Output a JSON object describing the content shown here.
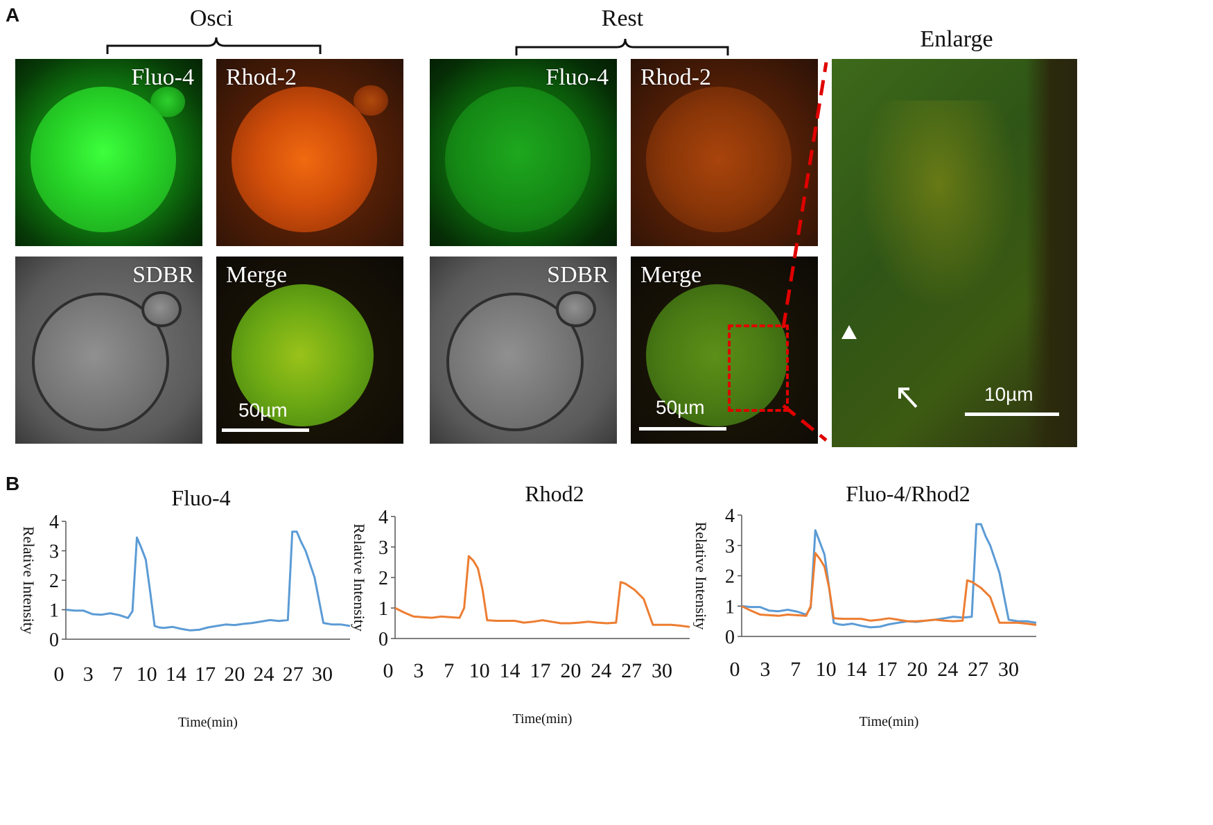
{
  "panel_a": {
    "letter": "A",
    "groups": [
      {
        "title": "Osci"
      },
      {
        "title": "Rest"
      }
    ],
    "tile_labels": {
      "fluo4": "Fluo-4",
      "rhod2": "Rhod-2",
      "sdbr": "SDBR",
      "merge": "Merge"
    },
    "scale_merge": "50µm",
    "enlarge_title": "Enlarge",
    "scale_enlarge": "10µm"
  },
  "panel_b": {
    "letter": "B",
    "ylabel": "Relative Intensity",
    "xlabel": "Time(min)"
  },
  "colors": {
    "blue": "#5b9bd5",
    "orange": "#ed7d31",
    "dashed_red": "#e00000"
  },
  "chart_data": [
    {
      "type": "line",
      "title": "Fluo-4",
      "xlabel": "Time(min)",
      "ylabel": "Relative Intensity",
      "x_ticks": [
        "0",
        "3",
        "7",
        "10",
        "14",
        "17",
        "20",
        "24",
        "27",
        "30"
      ],
      "ylim": [
        0,
        4
      ],
      "y_ticks": [
        0,
        1,
        2,
        3,
        4
      ],
      "xlim": [
        0,
        32
      ],
      "series": [
        {
          "color": "#5b9bd5",
          "x": [
            0,
            1,
            2,
            3,
            4,
            5,
            6,
            7,
            7.5,
            8,
            8.5,
            9,
            9.5,
            10,
            10.5,
            11,
            12,
            13,
            14,
            15,
            16,
            17,
            18,
            19,
            20,
            21,
            22,
            23,
            24,
            25,
            25.5,
            26,
            26.5,
            27,
            28,
            29,
            30,
            31,
            32
          ],
          "y": [
            1.0,
            0.97,
            0.97,
            0.85,
            0.83,
            0.88,
            0.82,
            0.72,
            0.95,
            3.45,
            3.1,
            2.7,
            1.6,
            0.45,
            0.4,
            0.38,
            0.42,
            0.35,
            0.3,
            0.32,
            0.4,
            0.45,
            0.5,
            0.48,
            0.52,
            0.55,
            0.6,
            0.65,
            0.62,
            0.65,
            3.65,
            3.65,
            3.3,
            3.0,
            2.1,
            0.55,
            0.5,
            0.5,
            0.45
          ]
        }
      ]
    },
    {
      "type": "line",
      "title": "Rhod2",
      "xlabel": "Time(min)",
      "ylabel": "Relative Intensity",
      "x_ticks": [
        "0",
        "3",
        "7",
        "10",
        "14",
        "17",
        "20",
        "24",
        "27",
        "30"
      ],
      "ylim": [
        0,
        4
      ],
      "y_ticks": [
        0,
        1,
        2,
        3,
        4
      ],
      "xlim": [
        0,
        32
      ],
      "series": [
        {
          "color": "#ed7d31",
          "x": [
            0,
            1,
            2,
            3,
            4,
            5,
            6,
            7,
            7.5,
            8,
            8.5,
            9,
            9.5,
            10,
            11,
            12,
            13,
            14,
            15,
            16,
            17,
            18,
            19,
            20,
            21,
            22,
            23,
            24,
            24.5,
            25,
            26,
            27,
            28,
            29,
            30,
            31,
            32
          ],
          "y": [
            1.0,
            0.85,
            0.72,
            0.7,
            0.68,
            0.72,
            0.7,
            0.68,
            1.0,
            2.7,
            2.55,
            2.3,
            1.6,
            0.6,
            0.58,
            0.58,
            0.58,
            0.52,
            0.55,
            0.6,
            0.55,
            0.5,
            0.5,
            0.52,
            0.55,
            0.52,
            0.5,
            0.52,
            1.85,
            1.8,
            1.6,
            1.3,
            0.45,
            0.45,
            0.45,
            0.42,
            0.38
          ]
        }
      ]
    },
    {
      "type": "line",
      "title": "Fluo-4/Rhod2",
      "xlabel": "Time(min)",
      "ylabel": "Relative Intensity",
      "x_ticks": [
        "0",
        "3",
        "7",
        "10",
        "14",
        "17",
        "20",
        "24",
        "27",
        "30"
      ],
      "ylim": [
        0,
        4
      ],
      "y_ticks": [
        0,
        1,
        2,
        3,
        4
      ],
      "xlim": [
        0,
        32
      ],
      "series": [
        {
          "color": "#5b9bd5",
          "x": [
            0,
            1,
            2,
            3,
            4,
            5,
            6,
            7,
            7.5,
            8,
            8.5,
            9,
            9.5,
            10,
            10.5,
            11,
            12,
            13,
            14,
            15,
            16,
            17,
            18,
            19,
            20,
            21,
            22,
            23,
            24,
            25,
            25.5,
            26,
            26.5,
            27,
            28,
            29,
            30,
            31,
            32
          ],
          "y": [
            1.0,
            0.97,
            0.97,
            0.85,
            0.83,
            0.88,
            0.82,
            0.72,
            0.95,
            3.5,
            3.1,
            2.7,
            1.6,
            0.45,
            0.4,
            0.38,
            0.42,
            0.35,
            0.3,
            0.32,
            0.4,
            0.45,
            0.5,
            0.48,
            0.52,
            0.55,
            0.6,
            0.65,
            0.62,
            0.65,
            3.7,
            3.7,
            3.3,
            3.0,
            2.1,
            0.55,
            0.5,
            0.5,
            0.45
          ]
        },
        {
          "color": "#ed7d31",
          "x": [
            0,
            1,
            2,
            3,
            4,
            5,
            6,
            7,
            7.5,
            8,
            8.5,
            9,
            9.5,
            10,
            11,
            12,
            13,
            14,
            15,
            16,
            17,
            18,
            19,
            20,
            21,
            22,
            23,
            24,
            24.5,
            25,
            26,
            27,
            28,
            29,
            30,
            31,
            32
          ],
          "y": [
            1.0,
            0.85,
            0.72,
            0.7,
            0.68,
            0.72,
            0.7,
            0.68,
            1.0,
            2.75,
            2.55,
            2.3,
            1.6,
            0.6,
            0.58,
            0.58,
            0.58,
            0.52,
            0.55,
            0.6,
            0.55,
            0.5,
            0.5,
            0.52,
            0.55,
            0.52,
            0.5,
            0.52,
            1.85,
            1.8,
            1.6,
            1.3,
            0.45,
            0.45,
            0.45,
            0.42,
            0.38
          ]
        }
      ]
    }
  ]
}
